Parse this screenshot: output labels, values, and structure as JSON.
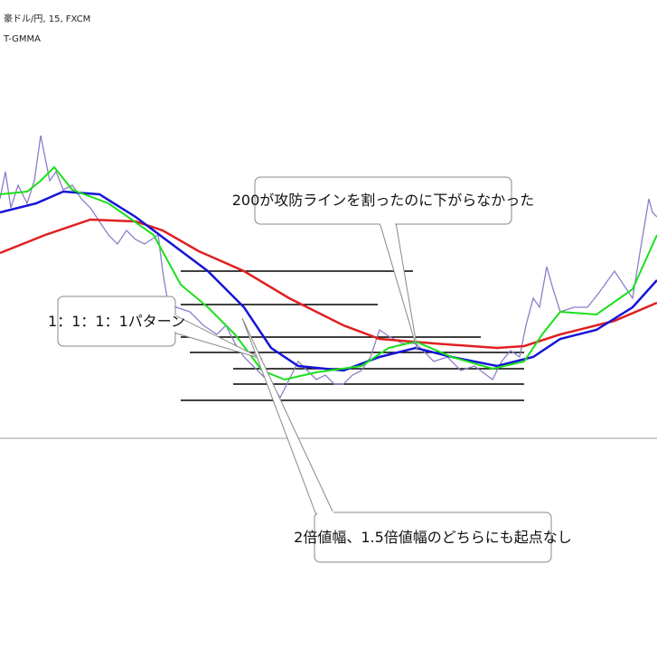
{
  "header": {
    "symbol": "豪ドル/円, 15, FXCM",
    "indicator": "T-GMMA"
  },
  "callouts": [
    {
      "text": "200が攻防ラインを割ったのに下がらなかった"
    },
    {
      "text": "1：1：1：1パターン"
    },
    {
      "text": "2倍値幅、1.5倍値幅のどちらにも起点なし"
    }
  ]
}
